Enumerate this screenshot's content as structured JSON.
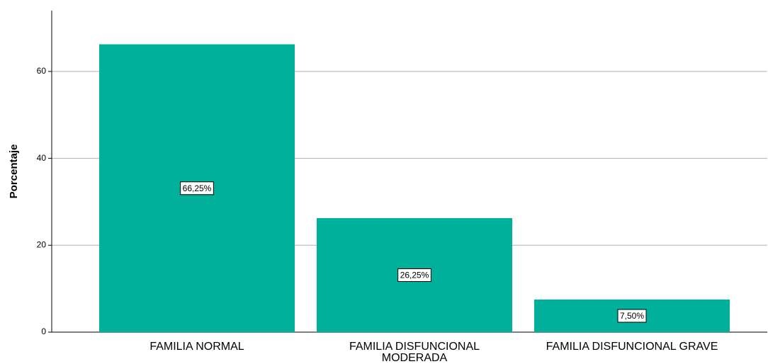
{
  "chart_data": {
    "type": "bar",
    "y_label": "Porcentaje",
    "categories": [
      "FAMILIA NORMAL",
      "FAMILIA DISFUNCIONAL MODERADA",
      "FAMILIA DISFUNCIONAL GRAVE"
    ],
    "values": [
      66.25,
      26.25,
      7.5
    ],
    "value_labels": [
      "66,25%",
      "26,25%",
      "7,50%"
    ],
    "color": "#00b09b",
    "ylim": [
      0,
      74
    ],
    "yticks": [
      0,
      20,
      40,
      60
    ],
    "grid": true
  }
}
